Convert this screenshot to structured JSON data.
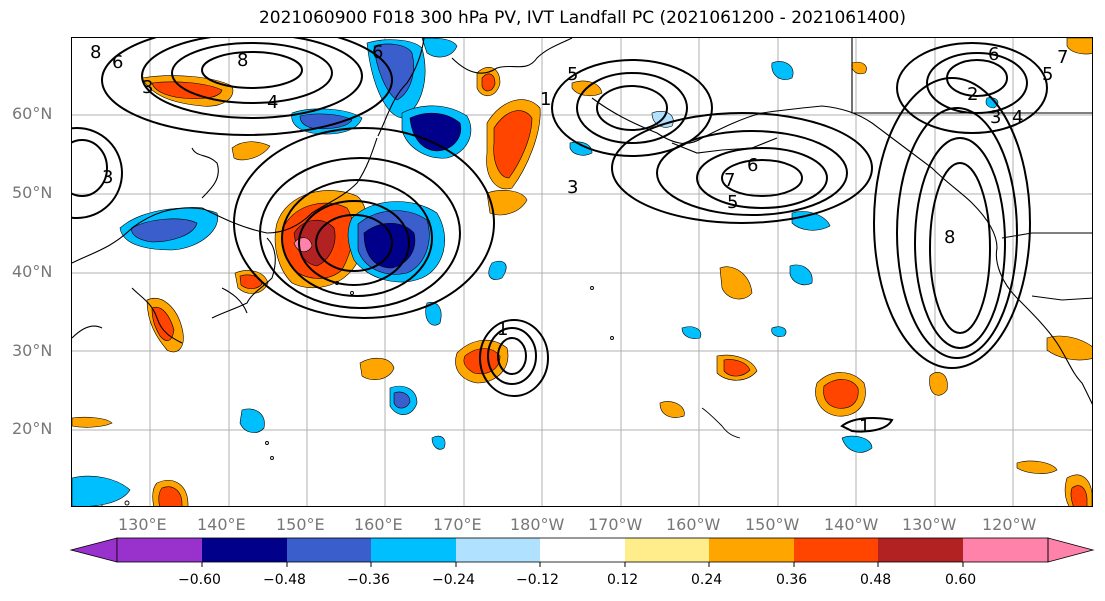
{
  "title": "2021060900 F018 300 hPa PV, IVT Landfall PC (2021061200 - 2021061400)",
  "lat_labels": [
    "60°N",
    "50°N",
    "40°N",
    "30°N",
    "20°N"
  ],
  "lon_labels": [
    "130°E",
    "140°E",
    "150°E",
    "160°E",
    "170°E",
    "180°W",
    "170°W",
    "160°W",
    "150°W",
    "140°W",
    "130°W",
    "120°W"
  ],
  "contour_labels": [
    "8",
    "6",
    "3",
    "8",
    "4",
    "6",
    "3",
    "5",
    "6",
    "7",
    "5",
    "3",
    "1",
    "6",
    "2",
    "5",
    "4",
    "7",
    "3",
    "8",
    "1",
    "1"
  ],
  "colorbar": {
    "ticks": [
      "−0.60",
      "−0.48",
      "−0.36",
      "−0.24",
      "−0.12",
      "0.12",
      "0.24",
      "0.36",
      "0.48",
      "0.60"
    ],
    "colors": [
      "#9932cc",
      "#00008b",
      "#3a5fcd",
      "#00bfff",
      "#b0e2ff",
      "#ffffff",
      "#ffec8b",
      "#ffa500",
      "#ff4500",
      "#b22222",
      "#ff82ab"
    ]
  }
}
